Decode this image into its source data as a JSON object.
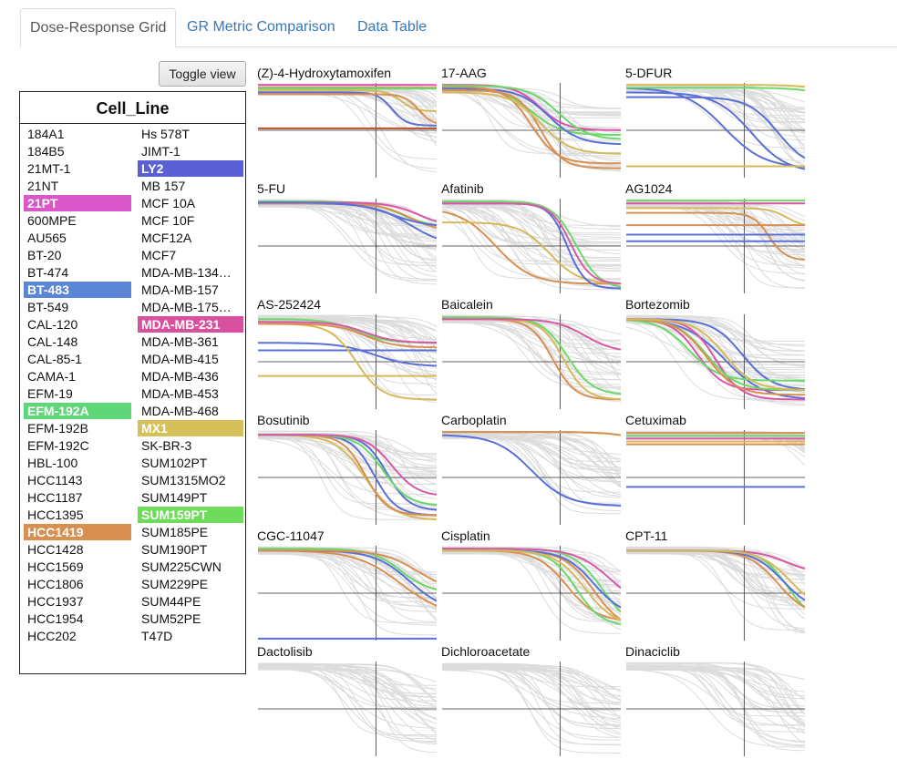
{
  "tabs": [
    {
      "label": "Dose-Response Grid",
      "active": true
    },
    {
      "label": "GR Metric Comparison",
      "active": false
    },
    {
      "label": "Data Table",
      "active": false
    }
  ],
  "toggle_label": "Toggle view",
  "cell_panel": {
    "title": "Cell_Line",
    "col1": [
      "184A1",
      "184B5",
      "21MT-1",
      "21NT",
      "21PT",
      "600MPE",
      "AU565",
      "BT-20",
      "BT-474",
      "BT-483",
      "BT-549",
      "CAL-120",
      "CAL-148",
      "CAL-85-1",
      "CAMA-1",
      "EFM-19",
      "EFM-192A",
      "EFM-192B",
      "EFM-192C",
      "HBL-100",
      "HCC1143",
      "HCC1187",
      "HCC1395",
      "HCC1419",
      "HCC1428",
      "HCC1569",
      "HCC1806",
      "HCC1937",
      "HCC1954",
      "HCC202"
    ],
    "col2": [
      "Hs 578T",
      "JIMT-1",
      "LY2",
      "MB 157",
      "MCF 10A",
      "MCF 10F",
      "MCF12A",
      "MCF7",
      "MDA-MB-134…",
      "MDA-MB-157",
      "MDA-MB-175…",
      "MDA-MB-231",
      "MDA-MB-361",
      "MDA-MB-415",
      "MDA-MB-436",
      "MDA-MB-453",
      "MDA-MB-468",
      "MX1",
      "SK-BR-3",
      "SUM102PT",
      "SUM1315MO2",
      "SUM149PT",
      "SUM159PT",
      "SUM185PE",
      "SUM190PT",
      "SUM225CWN",
      "SUM229PE",
      "SUM44PE",
      "SUM52PE",
      "T47D"
    ],
    "selected": {
      "21PT": "#d957c8",
      "LY2": "#5a5fd6",
      "BT-483": "#5b86d6",
      "MDA-MB-231": "#d9509e",
      "EFM-192A": "#5fd679",
      "MX1": "#d6c059",
      "SUM159PT": "#6fdb5a",
      "HCC1419": "#d98f50"
    }
  },
  "colors": {
    "grey": "#dcdcdc",
    "blue": "#5a6fd8",
    "green": "#6cd86a",
    "orange": "#d98f50",
    "pink": "#d957a8",
    "gold": "#d6b95a",
    "red_brown": "#b5502a"
  },
  "drugs": [
    "(Z)-4-Hydroxytamoxifen",
    "17-AAG",
    "5-DFUR",
    "5-FU",
    "Afatinib",
    "AG1024",
    "AS-252424",
    "Baicalein",
    "Bortezomib",
    "Bosutinib",
    "Carboplatin",
    "Cetuximab",
    "CGC-11047",
    "Cisplatin",
    "CPT-11",
    "Dactolisib",
    "Dichloroacetate",
    "Dinaciclib"
  ]
}
